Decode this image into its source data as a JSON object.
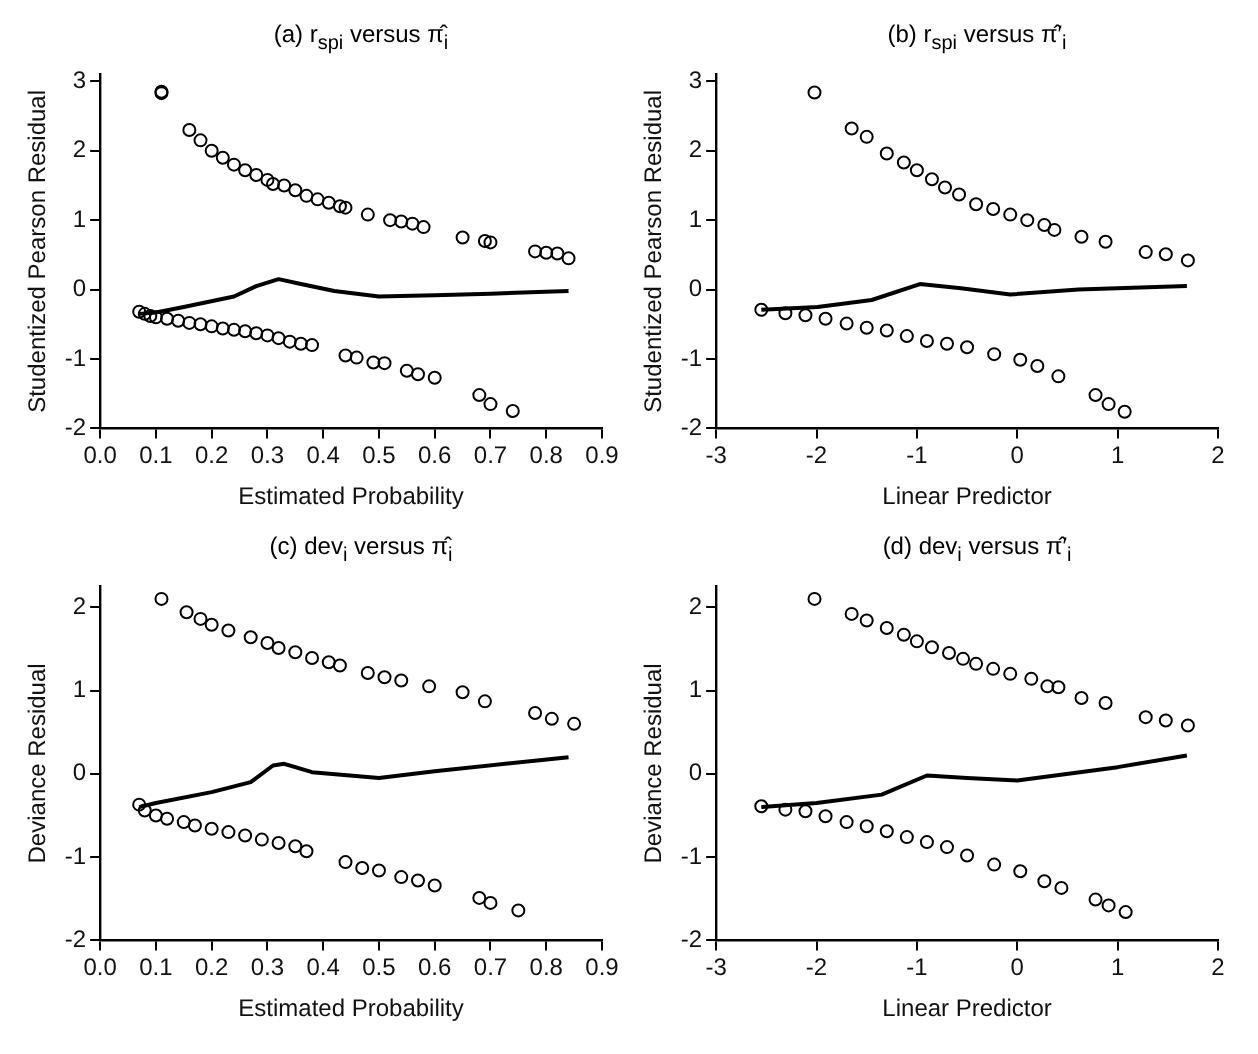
{
  "chart_data": [
    {
      "type": "scatter",
      "title": "(a) r$_{spi}$ versus π̂$_{i}$",
      "xlabel": "Estimated Probability",
      "ylabel": "Studentized Pearson Residual",
      "xlim": [
        0,
        0.9
      ],
      "ylim": [
        -2,
        3.1
      ],
      "xticks": [
        {
          "value": 0,
          "label": "0.0"
        },
        0.1,
        0.2,
        0.3,
        0.4,
        0.5,
        0.6,
        0.7,
        0.8,
        0.9
      ],
      "yticks": [
        -2,
        -1,
        0,
        1,
        2,
        3
      ],
      "grid": false,
      "legend": false,
      "marker": "circle",
      "series": [
        {
          "color": "#000000",
          "x": [
            0.11,
            0.11,
            0.16,
            0.18,
            0.2,
            0.22,
            0.24,
            0.26,
            0.28,
            0.3,
            0.31,
            0.33,
            0.35,
            0.37,
            0.39,
            0.41,
            0.43,
            0.44,
            0.48,
            0.52,
            0.54,
            0.56,
            0.58,
            0.65,
            0.69,
            0.7,
            0.78,
            0.8,
            0.82,
            0.84,
            0.07,
            0.08,
            0.09,
            0.1,
            0.12,
            0.14,
            0.16,
            0.18,
            0.2,
            0.22,
            0.24,
            0.26,
            0.28,
            0.3,
            0.32,
            0.34,
            0.36,
            0.38,
            0.44,
            0.46,
            0.49,
            0.51,
            0.55,
            0.57,
            0.6,
            0.68,
            0.7,
            0.74
          ],
          "values": [
            2.85,
            2.83,
            2.3,
            2.15,
            2.0,
            1.9,
            1.8,
            1.72,
            1.65,
            1.58,
            1.52,
            1.5,
            1.43,
            1.35,
            1.3,
            1.25,
            1.2,
            1.18,
            1.08,
            1.0,
            0.98,
            0.95,
            0.9,
            0.75,
            0.7,
            0.68,
            0.55,
            0.53,
            0.52,
            0.45,
            -0.32,
            -0.35,
            -0.38,
            -0.4,
            -0.42,
            -0.45,
            -0.48,
            -0.5,
            -0.53,
            -0.56,
            -0.58,
            -0.6,
            -0.63,
            -0.66,
            -0.7,
            -0.75,
            -0.78,
            -0.8,
            -0.95,
            -0.98,
            -1.05,
            -1.06,
            -1.17,
            -1.22,
            -1.27,
            -1.52,
            -1.65,
            -1.75
          ]
        },
        {
          "type": "line",
          "color": "#000000",
          "marker": "none",
          "x": [
            0.07,
            0.1,
            0.15,
            0.24,
            0.28,
            0.32,
            0.36,
            0.42,
            0.5,
            0.6,
            0.7,
            0.84
          ],
          "values": [
            -0.35,
            -0.33,
            -0.25,
            -0.1,
            0.05,
            0.15,
            0.08,
            -0.02,
            -0.1,
            -0.08,
            -0.06,
            -0.02
          ]
        }
      ]
    },
    {
      "type": "scatter",
      "title": "(b) r$_{spi}$ versus π̂′$_{i}$",
      "xlabel": "Linear Predictor",
      "ylabel": "Studentized Pearson Residual",
      "xlim": [
        -3,
        2
      ],
      "ylim": [
        -2,
        3.1
      ],
      "xticks": [
        -3,
        -2,
        -1,
        0,
        1,
        2
      ],
      "yticks": [
        -2,
        -1,
        0,
        1,
        2,
        3
      ],
      "grid": false,
      "legend": false,
      "marker": "circle",
      "series": [
        {
          "color": "#000000",
          "x": [
            -2.02,
            -1.65,
            -1.5,
            -1.3,
            -1.13,
            -1.0,
            -0.85,
            -0.72,
            -0.58,
            -0.41,
            -0.24,
            -0.07,
            0.1,
            0.27,
            0.37,
            0.64,
            0.88,
            1.28,
            1.48,
            1.7,
            -2.55,
            -2.31,
            -2.11,
            -1.91,
            -1.7,
            -1.5,
            -1.3,
            -1.1,
            -0.9,
            -0.7,
            -0.5,
            -0.23,
            0.03,
            0.2,
            0.41,
            0.78,
            0.91,
            1.07
          ],
          "values": [
            2.84,
            2.32,
            2.2,
            1.96,
            1.83,
            1.72,
            1.59,
            1.47,
            1.37,
            1.23,
            1.16,
            1.08,
            1.0,
            0.93,
            0.86,
            0.76,
            0.69,
            0.54,
            0.51,
            0.42,
            -0.29,
            -0.34,
            -0.37,
            -0.42,
            -0.49,
            -0.55,
            -0.59,
            -0.67,
            -0.74,
            -0.78,
            -0.83,
            -0.93,
            -1.01,
            -1.1,
            -1.25,
            -1.52,
            -1.65,
            -1.76
          ]
        },
        {
          "type": "line",
          "color": "#000000",
          "marker": "none",
          "x": [
            -2.55,
            -1.99,
            -1.45,
            -0.97,
            -0.56,
            -0.07,
            0.61,
            1.69
          ],
          "values": [
            -0.29,
            -0.25,
            -0.15,
            0.08,
            0.02,
            -0.07,
            0,
            0.05
          ]
        }
      ]
    },
    {
      "type": "scatter",
      "title": "(c) dev$_{i}$ versus π̂$_{i}$",
      "xlabel": "Estimated Probability",
      "ylabel": "Deviance Residual",
      "xlim": [
        0,
        0.9
      ],
      "ylim": [
        -2,
        2.25
      ],
      "xticks": [
        {
          "value": 0,
          "label": "0.0"
        },
        0.1,
        0.2,
        0.3,
        0.4,
        0.5,
        0.6,
        0.7,
        0.8,
        0.9
      ],
      "yticks": [
        -2,
        -1,
        0,
        1,
        2
      ],
      "grid": false,
      "legend": false,
      "marker": "circle",
      "series": [
        {
          "color": "#000000",
          "x": [
            0.11,
            0.155,
            0.18,
            0.2,
            0.23,
            0.27,
            0.3,
            0.32,
            0.35,
            0.38,
            0.41,
            0.43,
            0.48,
            0.51,
            0.54,
            0.59,
            0.65,
            0.69,
            0.78,
            0.81,
            0.85,
            0.07,
            0.08,
            0.1,
            0.12,
            0.15,
            0.17,
            0.2,
            0.23,
            0.26,
            0.29,
            0.32,
            0.35,
            0.37,
            0.44,
            0.47,
            0.5,
            0.54,
            0.57,
            0.6,
            0.68,
            0.7,
            0.75
          ],
          "values": [
            2.1,
            1.94,
            1.86,
            1.79,
            1.72,
            1.64,
            1.57,
            1.51,
            1.46,
            1.39,
            1.34,
            1.3,
            1.21,
            1.16,
            1.12,
            1.05,
            0.98,
            0.87,
            0.73,
            0.66,
            0.6,
            -0.37,
            -0.44,
            -0.5,
            -0.54,
            -0.58,
            -0.62,
            -0.66,
            -0.7,
            -0.74,
            -0.79,
            -0.83,
            -0.87,
            -0.93,
            -1.06,
            -1.13,
            -1.16,
            -1.24,
            -1.28,
            -1.34,
            -1.49,
            -1.55,
            -1.64
          ]
        },
        {
          "type": "line",
          "color": "#000000",
          "marker": "none",
          "x": [
            0.07,
            0.1,
            0.2,
            0.27,
            0.31,
            0.33,
            0.38,
            0.5,
            0.6,
            0.84
          ],
          "values": [
            -0.4,
            -0.35,
            -0.22,
            -0.1,
            0.1,
            0.12,
            0.02,
            -0.05,
            0.03,
            0.2
          ]
        }
      ]
    },
    {
      "type": "scatter",
      "title": "(d) dev$_{i}$ versus π̂′$_{i}$",
      "xlabel": "Linear Predictor",
      "ylabel": "Deviance Residual",
      "xlim": [
        -3,
        2
      ],
      "ylim": [
        -2,
        2.25
      ],
      "xticks": [
        -3,
        -2,
        -1,
        0,
        1,
        2
      ],
      "yticks": [
        -2,
        -1,
        0,
        1,
        2
      ],
      "grid": false,
      "legend": false,
      "marker": "circle",
      "series": [
        {
          "color": "#000000",
          "x": [
            -2.02,
            -1.65,
            -1.5,
            -1.3,
            -1.13,
            -1.0,
            -0.85,
            -0.68,
            -0.54,
            -0.41,
            -0.24,
            -0.07,
            0.14,
            0.3,
            0.41,
            0.64,
            0.88,
            1.28,
            1.48,
            1.7,
            -2.55,
            -2.31,
            -2.11,
            -1.91,
            -1.7,
            -1.5,
            -1.3,
            -1.1,
            -0.9,
            -0.7,
            -0.5,
            -0.23,
            0.03,
            0.27,
            0.44,
            0.78,
            0.91,
            1.08
          ],
          "values": [
            2.1,
            1.92,
            1.84,
            1.75,
            1.67,
            1.59,
            1.52,
            1.45,
            1.38,
            1.32,
            1.26,
            1.2,
            1.14,
            1.05,
            1.04,
            0.91,
            0.85,
            0.68,
            0.64,
            0.58,
            -0.39,
            -0.43,
            -0.45,
            -0.51,
            -0.58,
            -0.63,
            -0.69,
            -0.76,
            -0.82,
            -0.88,
            -0.98,
            -1.09,
            -1.17,
            -1.29,
            -1.37,
            -1.51,
            -1.58,
            -1.66
          ]
        },
        {
          "type": "line",
          "color": "#000000",
          "marker": "none",
          "x": [
            -2.55,
            -2,
            -1.35,
            -0.9,
            -0.5,
            0,
            1,
            1.69
          ],
          "values": [
            -0.4,
            -0.35,
            -0.25,
            -0.02,
            -0.05,
            -0.08,
            0.08,
            0.22
          ]
        }
      ]
    }
  ]
}
